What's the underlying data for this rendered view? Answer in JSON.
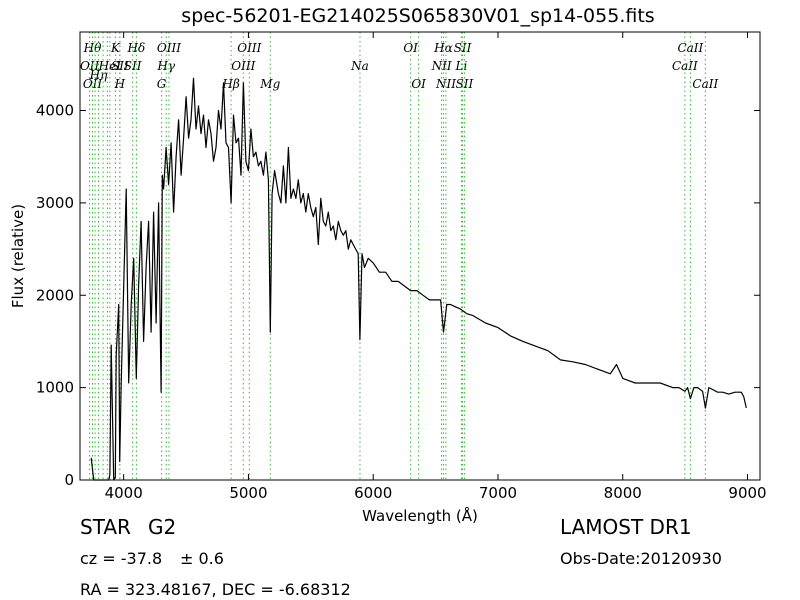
{
  "chart_data": {
    "type": "line",
    "title": "spec-56201-EG214025S065830V01_sp14-055.fits",
    "xlabel": "Wavelength (Å)",
    "ylabel": "Flux (relative)",
    "xlim": [
      3650,
      9100
    ],
    "ylim": [
      0,
      4850
    ],
    "xticks": [
      4000,
      5000,
      6000,
      7000,
      8000,
      9000
    ],
    "yticks": [
      0,
      1000,
      2000,
      3000,
      4000
    ],
    "line_color": "#000000",
    "marker_color": "#33bb33",
    "series": [
      {
        "x": [
          3740,
          3760,
          3780,
          3800,
          3820,
          3840,
          3860,
          3880,
          3890,
          3900,
          3920,
          3933,
          3940,
          3960,
          3968,
          3980,
          4000,
          4020,
          4040,
          4060,
          4080,
          4101,
          4120,
          4140,
          4160,
          4180,
          4200,
          4220,
          4240,
          4260,
          4280,
          4300,
          4310,
          4320,
          4340,
          4360,
          4380,
          4400,
          4420,
          4440,
          4460,
          4480,
          4500,
          4520,
          4540,
          4560,
          4580,
          4600,
          4620,
          4640,
          4660,
          4680,
          4700,
          4720,
          4740,
          4760,
          4780,
          4800,
          4820,
          4840,
          4861,
          4880,
          4900,
          4920,
          4940,
          4960,
          4980,
          5000,
          5020,
          5040,
          5060,
          5080,
          5100,
          5120,
          5140,
          5160,
          5175,
          5190,
          5210,
          5240,
          5260,
          5280,
          5300,
          5320,
          5340,
          5360,
          5380,
          5400,
          5420,
          5440,
          5460,
          5480,
          5500,
          5520,
          5540,
          5560,
          5580,
          5600,
          5620,
          5640,
          5660,
          5680,
          5700,
          5720,
          5740,
          5760,
          5780,
          5800,
          5820,
          5840,
          5860,
          5880,
          5893,
          5910,
          5930,
          5960,
          6000,
          6050,
          6100,
          6150,
          6200,
          6250,
          6300,
          6350,
          6400,
          6450,
          6500,
          6540,
          6563,
          6590,
          6620,
          6650,
          6700,
          6750,
          6800,
          6900,
          7000,
          7100,
          7200,
          7300,
          7400,
          7500,
          7600,
          7700,
          7800,
          7900,
          7950,
          8000,
          8100,
          8200,
          8300,
          8400,
          8450,
          8498,
          8520,
          8542,
          8570,
          8600,
          8640,
          8662,
          8690,
          8720,
          8760,
          8800,
          8850,
          8900,
          8950,
          8970,
          8990
        ],
        "y": [
          240,
          0,
          0,
          0,
          0,
          0,
          0,
          0,
          60,
          1460,
          0,
          30,
          1350,
          1900,
          200,
          1050,
          2100,
          3150,
          1050,
          1900,
          2400,
          1100,
          2100,
          2800,
          1500,
          2300,
          2800,
          1600,
          2900,
          1700,
          3000,
          950,
          3300,
          3150,
          3600,
          3200,
          3650,
          2900,
          3500,
          3900,
          3300,
          3700,
          4150,
          3700,
          3900,
          4350,
          3800,
          4050,
          3750,
          3950,
          3600,
          3900,
          3750,
          3450,
          3600,
          4000,
          3800,
          4300,
          3650,
          3600,
          3000,
          3950,
          3650,
          3700,
          3300,
          4300,
          3450,
          3350,
          3800,
          3500,
          3550,
          3400,
          3450,
          3300,
          3550,
          3250,
          1600,
          3100,
          3350,
          3100,
          3000,
          3400,
          3000,
          3600,
          3050,
          3150,
          3050,
          3250,
          3000,
          3100,
          2900,
          3100,
          2950,
          2850,
          2950,
          2550,
          3050,
          2800,
          2750,
          2900,
          2700,
          2750,
          2600,
          2800,
          2700,
          2650,
          2700,
          2500,
          2600,
          2550,
          2500,
          2450,
          1520,
          2450,
          2300,
          2400,
          2350,
          2250,
          2250,
          2150,
          2150,
          2100,
          2050,
          2050,
          2000,
          1950,
          1950,
          1950,
          1600,
          1900,
          1900,
          1880,
          1850,
          1800,
          1780,
          1700,
          1650,
          1560,
          1500,
          1450,
          1400,
          1300,
          1280,
          1250,
          1200,
          1150,
          1250,
          1100,
          1050,
          1050,
          1050,
          1000,
          1000,
          960,
          1000,
          880,
          1000,
          1000,
          960,
          780,
          1000,
          980,
          950,
          950,
          930,
          950,
          950,
          900,
          780
        ]
      }
    ],
    "line_markers": [
      {
        "x": 3727,
        "label": "OII",
        "row": 1,
        "align": "center"
      },
      {
        "x": 3750,
        "label": "Hθ",
        "row": 0,
        "align": "center"
      },
      {
        "x": 3750,
        "label": "OII",
        "row": 2,
        "align": "center"
      },
      {
        "x": 3771,
        "label": "",
        "row": -1,
        "align": "center"
      },
      {
        "x": 3798,
        "label": "Hη",
        "row": 1.5,
        "align": "center"
      },
      {
        "x": 3835,
        "label": "",
        "row": -1,
        "align": "center"
      },
      {
        "x": 3869,
        "label": "",
        "row": -1,
        "align": "center"
      },
      {
        "x": 3889,
        "label": "HeI",
        "row": 1,
        "align": "center"
      },
      {
        "x": 3934,
        "label": "K",
        "row": 0,
        "align": "center"
      },
      {
        "x": 3969,
        "label": "H",
        "row": 2,
        "align": "center"
      },
      {
        "x": 3970,
        "label": "SII",
        "row": 1,
        "align": "center"
      },
      {
        "x": 4072,
        "label": "SII",
        "row": 1,
        "align": "center"
      },
      {
        "x": 4102,
        "label": "Hδ",
        "row": 0,
        "align": "center"
      },
      {
        "x": 4304,
        "label": "G",
        "row": 2,
        "align": "center"
      },
      {
        "x": 4341,
        "label": "Hγ",
        "row": 1,
        "align": "center"
      },
      {
        "x": 4363,
        "label": "OIII",
        "row": 0,
        "align": "center"
      },
      {
        "x": 4861,
        "label": "Hβ",
        "row": 2,
        "align": "center"
      },
      {
        "x": 4959,
        "label": "OIII",
        "row": 1,
        "align": "center"
      },
      {
        "x": 5007,
        "label": "OIII",
        "row": 0,
        "align": "center"
      },
      {
        "x": 5175,
        "label": "Mg",
        "row": 2,
        "align": "center"
      },
      {
        "x": 5894,
        "label": "Na",
        "row": 1,
        "align": "center"
      },
      {
        "x": 6300,
        "label": "OI",
        "row": 0,
        "align": "center"
      },
      {
        "x": 6364,
        "label": "OI",
        "row": 2,
        "align": "center"
      },
      {
        "x": 6548,
        "label": "NII",
        "row": 1,
        "align": "center"
      },
      {
        "x": 6563,
        "label": "Hα",
        "row": 0,
        "align": "center"
      },
      {
        "x": 6583,
        "label": "NII",
        "row": 2,
        "align": "center"
      },
      {
        "x": 6707,
        "label": "Li",
        "row": 1,
        "align": "center"
      },
      {
        "x": 6716,
        "label": "SII",
        "row": 0,
        "align": "center"
      },
      {
        "x": 6731,
        "label": "SII",
        "row": 2,
        "align": "center"
      },
      {
        "x": 8498,
        "label": "CaII",
        "row": 1,
        "align": "center"
      },
      {
        "x": 8542,
        "label": "CaII",
        "row": 0,
        "align": "center"
      },
      {
        "x": 8662,
        "label": "CaII",
        "row": 2,
        "align": "center"
      }
    ]
  },
  "info": {
    "class": "STAR",
    "subclass": "G2",
    "cz_label": "cz = -37.8",
    "cz_err": "± 0.6",
    "radec": "RA = 323.48167, DEC = -6.68312",
    "survey": "LAMOST DR1",
    "obs_date": "Obs-Date:20120930"
  }
}
